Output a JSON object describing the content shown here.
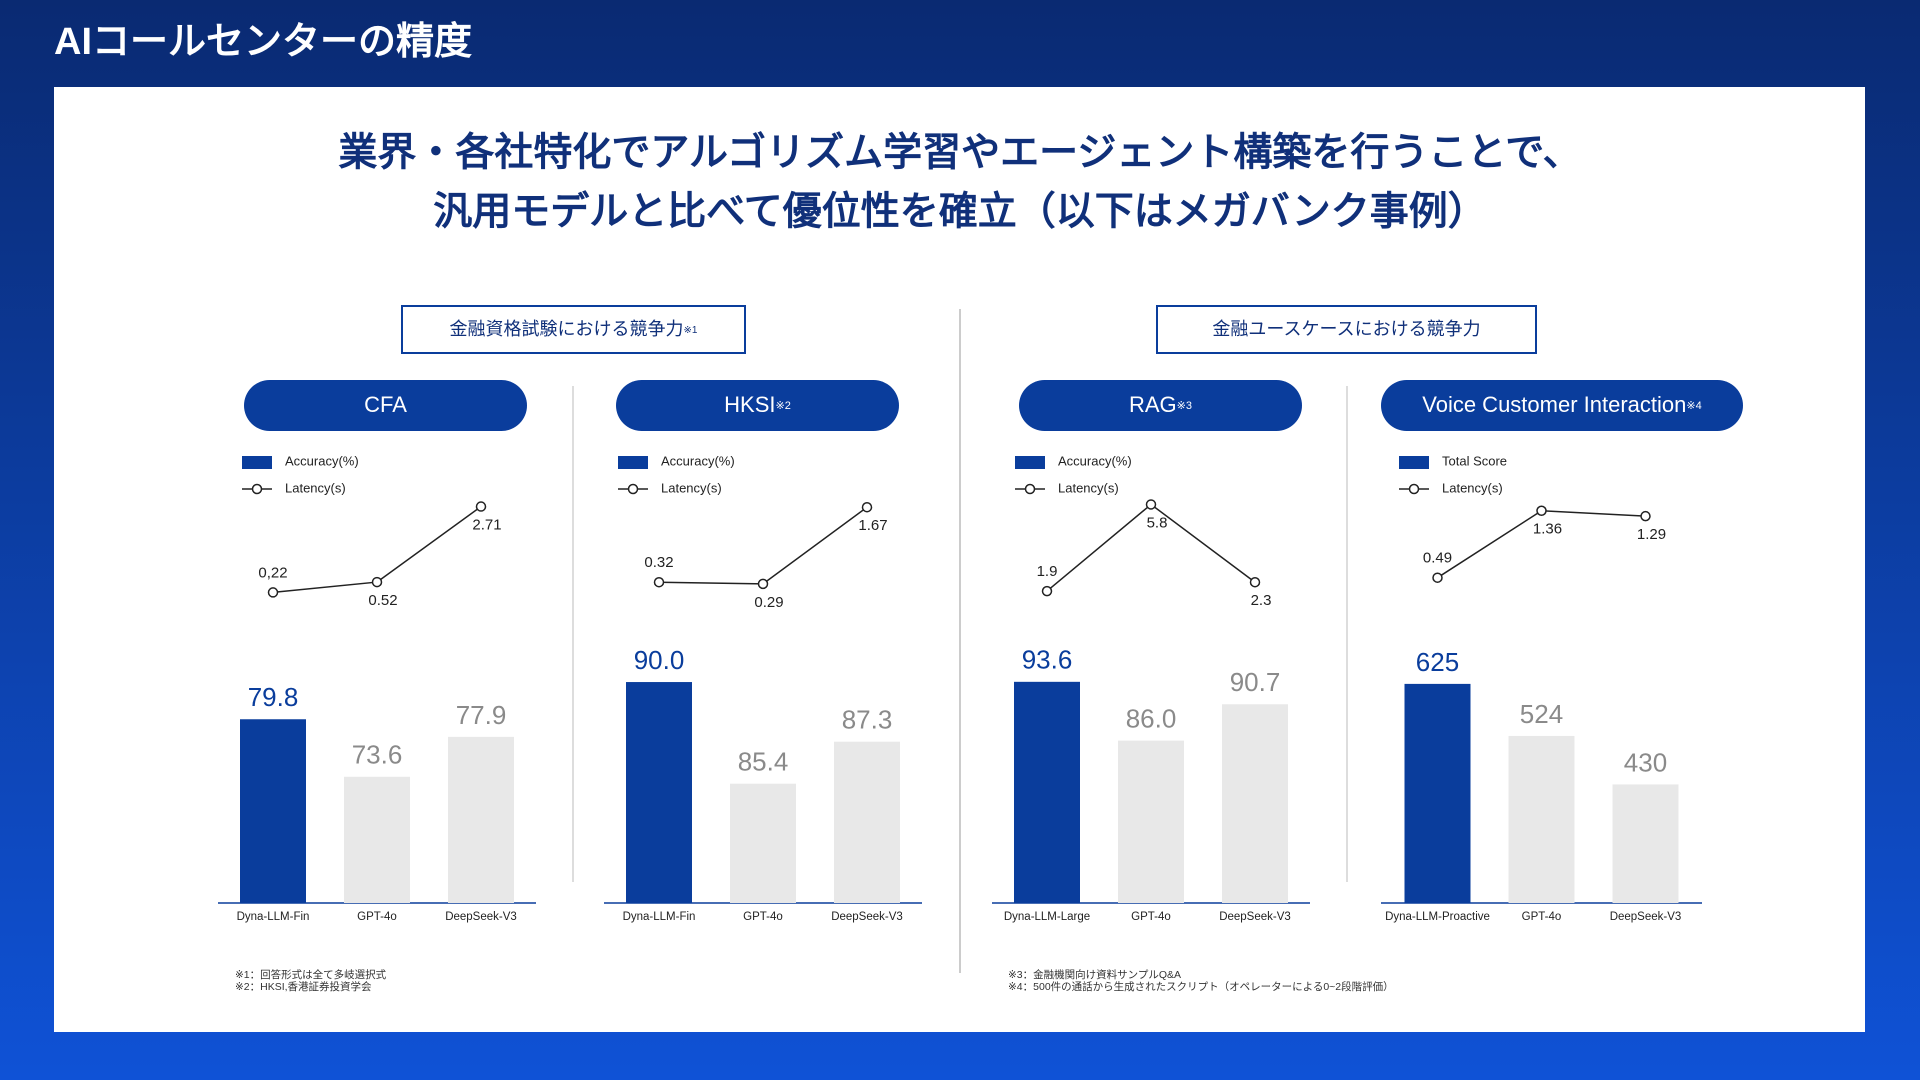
{
  "page_title": "AIコールセンターの精度",
  "headline": [
    "業界・各社特化でアルゴリズム学習やエージェント構築を行うことで、",
    "汎用モデルと比べて優位性を確立（以下はメガバンク事例）"
  ],
  "sections": [
    {
      "label": "金融資格試験における競争力",
      "note": "※1"
    },
    {
      "label": "金融ユースケースにおける競争力"
    }
  ],
  "chart_data": [
    {
      "type": "bar",
      "title": "CFA",
      "categories": [
        "Dyna-LLM-Fin",
        "GPT-4o",
        "DeepSeek-V3"
      ],
      "series": [
        {
          "name": "Accuracy(%)",
          "color": "#0a3d9c",
          "colors": [
            "#0a3d9c",
            "#e8e8e8",
            "#e8e8e8"
          ],
          "values": [
            79.8,
            73.6,
            77.9
          ],
          "value_label_colors": [
            "#0a3d9c",
            "#8a8a8a",
            "#8a8a8a"
          ]
        },
        {
          "name": "Latency(s)",
          "type": "line",
          "axis": "y2",
          "color": "#222222",
          "values": [
            0.22,
            0.52,
            2.71
          ],
          "value_labels": [
            "0,22",
            "0.52",
            "2.71"
          ]
        }
      ],
      "ylim": [
        60,
        85
      ],
      "y2lim": [
        0,
        2.9
      ]
    },
    {
      "type": "bar",
      "title": "HKSI",
      "title_note": "※2",
      "categories": [
        "Dyna-LLM-Fin",
        "GPT-4o",
        "DeepSeek-V3"
      ],
      "series": [
        {
          "name": "Accuracy(%)",
          "color": "#0a3d9c",
          "colors": [
            "#0a3d9c",
            "#e8e8e8",
            "#e8e8e8"
          ],
          "values": [
            90.0,
            85.4,
            87.3
          ],
          "value_labels": [
            "90.0",
            "85.4",
            "87.3"
          ],
          "value_label_colors": [
            "#0a3d9c",
            "#8a8a8a",
            "#8a8a8a"
          ]
        },
        {
          "name": "Latency(s)",
          "type": "line",
          "axis": "y2",
          "color": "#222222",
          "values": [
            0.32,
            0.29,
            1.67
          ]
        }
      ],
      "ylim": [
        80,
        90.5
      ],
      "y2lim": [
        0,
        1.8
      ]
    },
    {
      "type": "bar",
      "title": "RAG",
      "title_note": "※3",
      "categories": [
        "Dyna-LLM-Large",
        "GPT-4o",
        "DeepSeek-V3"
      ],
      "series": [
        {
          "name": "Accuracy(%)",
          "color": "#0a3d9c",
          "colors": [
            "#0a3d9c",
            "#e8e8e8",
            "#e8e8e8"
          ],
          "values": [
            93.6,
            86.0,
            90.7
          ],
          "value_labels": [
            "93.6",
            "86.0",
            "90.7"
          ],
          "value_label_colors": [
            "#0a3d9c",
            "#8a8a8a",
            "#8a8a8a"
          ]
        },
        {
          "name": "Latency(s)",
          "type": "line",
          "axis": "y2",
          "color": "#222222",
          "values": [
            1.9,
            5.8,
            2.3
          ]
        }
      ],
      "ylim": [
        65,
        95
      ],
      "y2lim": [
        1.5,
        6
      ]
    },
    {
      "type": "bar",
      "title": "Voice Customer Interaction",
      "title_note": "※4",
      "categories": [
        "Dyna-LLM-Proactive",
        "GPT-4o",
        "DeepSeek-V3"
      ],
      "series": [
        {
          "name": "Total Score",
          "color": "#0a3d9c",
          "colors": [
            "#0a3d9c",
            "#e8e8e8",
            "#e8e8e8"
          ],
          "values": [
            625,
            524,
            430
          ],
          "value_label_colors": [
            "#0a3d9c",
            "#8a8a8a",
            "#8a8a8a"
          ]
        },
        {
          "name": "Latency(s)",
          "type": "line",
          "axis": "y2",
          "color": "#222222",
          "values": [
            0.49,
            1.36,
            1.29
          ]
        }
      ],
      "ylim": [
        200,
        650
      ],
      "y2lim": [
        0.2,
        1.5
      ]
    }
  ],
  "footnotes": [
    [
      "※1：回答形式は全て多岐選択式",
      "※2：HKSI,香港証券投資学会"
    ],
    [
      "※3：金融機関向け資料サンプルQ&A",
      "※4：500件の通話から生成されたスクリプト（オペレーターによる0~2段階評価）"
    ]
  ]
}
